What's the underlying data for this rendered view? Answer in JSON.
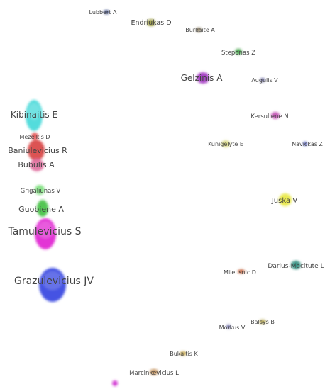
{
  "nodes": [
    {
      "id": "lubbert",
      "label": "Lubbert A",
      "color": "#2c3e7a"
    },
    {
      "id": "endriukas",
      "label": "Endriukas D",
      "color": "#9a9a3a"
    },
    {
      "id": "burkaite",
      "label": "Burkaite A",
      "color": "#7a6a4a"
    },
    {
      "id": "steponas",
      "label": "Steponas Z",
      "color": "#3aa040"
    },
    {
      "id": "gelzinis",
      "label": "Gelzinis A",
      "color": "#a030c0"
    },
    {
      "id": "augulis",
      "label": "Augulis V",
      "color": "#4a4a8a"
    },
    {
      "id": "kibinaitis",
      "label": "Kibinaitis E",
      "color": "#40d8d8"
    },
    {
      "id": "kersuliene",
      "label": "Kersuliene N",
      "color": "#c04ab0"
    },
    {
      "id": "mezeikis",
      "label": "Mezeikis D",
      "color": "#e05050"
    },
    {
      "id": "kunigelyte",
      "label": "Kunigelyte E",
      "color": "#d8d880"
    },
    {
      "id": "navickas",
      "label": "Navickas Z",
      "color": "#4a5ac0"
    },
    {
      "id": "baniulevicius",
      "label": "Baniulevicius R",
      "color": "#d84040"
    },
    {
      "id": "bubulis",
      "label": "Bubulis A",
      "color": "#e070a0"
    },
    {
      "id": "grigaliunas",
      "label": "Grigaliunas V",
      "color": "#80e080"
    },
    {
      "id": "juska",
      "label": "Juska V",
      "color": "#e8e840"
    },
    {
      "id": "guobiene",
      "label": "Guobiene A",
      "color": "#40c040"
    },
    {
      "id": "tamulevicius",
      "label": "Tamulevicius S",
      "color": "#e020d0"
    },
    {
      "id": "darius",
      "label": "Darius-Macitute L",
      "color": "#2a8a7a"
    },
    {
      "id": "mileusnic",
      "label": "Mileusnic D",
      "color": "#c05a30"
    },
    {
      "id": "grazulevicius",
      "label": "Grazulevicius JV",
      "color": "#3040e0"
    },
    {
      "id": "balsys",
      "label": "Balsys B",
      "color": "#b0a040"
    },
    {
      "id": "morkus",
      "label": "Morkus V",
      "color": "#5a5a9a"
    },
    {
      "id": "bukaitis",
      "label": "Bukaitis K",
      "color": "#c0a040"
    },
    {
      "id": "marcinkevicius",
      "label": "Marcinkevicius L",
      "color": "#c08a50"
    },
    {
      "id": "unlabeled",
      "label": "",
      "color": "#d030d0"
    }
  ]
}
